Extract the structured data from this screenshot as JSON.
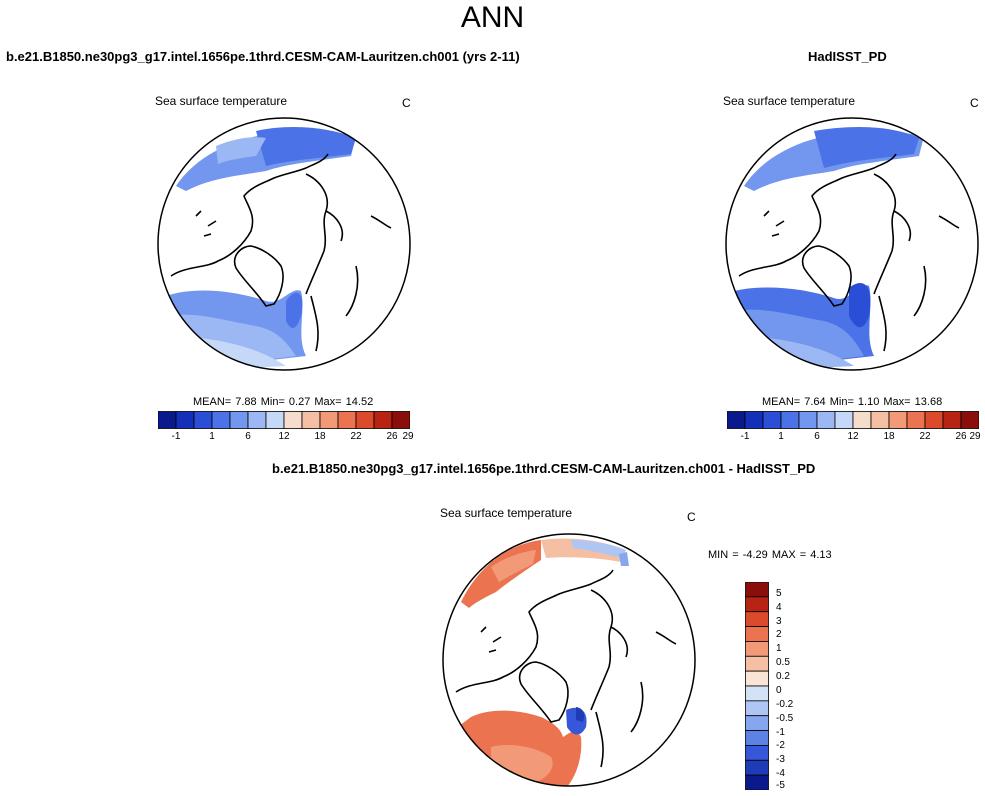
{
  "figure": {
    "title": "ANN"
  },
  "panels": [
    {
      "case_title": "b.e21.B1850.ne30pg3_g17.intel.1656pe.1thrd.CESM-CAM-Lauritzen.ch001 (yrs 2-11)",
      "variable": "Sea surface temperature",
      "units": "C",
      "stats": "MEAN=   7.88  Min=   0.27  Max=  14.52",
      "colorbar_ticks": [
        "-1",
        "1",
        "6",
        "12",
        "18",
        "22",
        "26",
        "29"
      ]
    },
    {
      "case_title": "HadISST_PD",
      "variable": "Sea surface temperature",
      "units": "C",
      "stats": "MEAN=   7.64  Min=   1.10  Max=  13.68",
      "colorbar_ticks": [
        "-1",
        "1",
        "6",
        "12",
        "18",
        "22",
        "26",
        "29"
      ]
    },
    {
      "case_title": "b.e21.B1850.ne30pg3_g17.intel.1656pe.1thrd.CESM-CAM-Lauritzen.ch001 - HadISST_PD",
      "variable": "Sea surface temperature",
      "units": "C",
      "stats": "MIN =  -4.29 MAX =   4.13",
      "colorbar_ticks": [
        "5",
        "4",
        "3",
        "2",
        "1",
        "0.5",
        "0.2",
        "0",
        "-0.2",
        "-0.5",
        "-1",
        "-2",
        "-3",
        "-4",
        "-5"
      ]
    }
  ],
  "colors": {
    "abs_scale": [
      "#0a1a8c",
      "#1530b8",
      "#2a4fd6",
      "#4b72e6",
      "#7396ef",
      "#9cb8f4",
      "#c6d8f8",
      "#f5dccd",
      "#f5bfa3",
      "#f29a78",
      "#ec7350",
      "#dc4a2c",
      "#b82413",
      "#8a0f0a"
    ],
    "diff_scale": [
      "#8a0f0a",
      "#b82413",
      "#dc4a2c",
      "#ec7350",
      "#f29a78",
      "#f5bfa3",
      "#fae4d6",
      "#d4e2f8",
      "#afc6f4",
      "#86a6ee",
      "#5c82e6",
      "#3658d8",
      "#1f3cb8",
      "#0a1a8c"
    ]
  }
}
